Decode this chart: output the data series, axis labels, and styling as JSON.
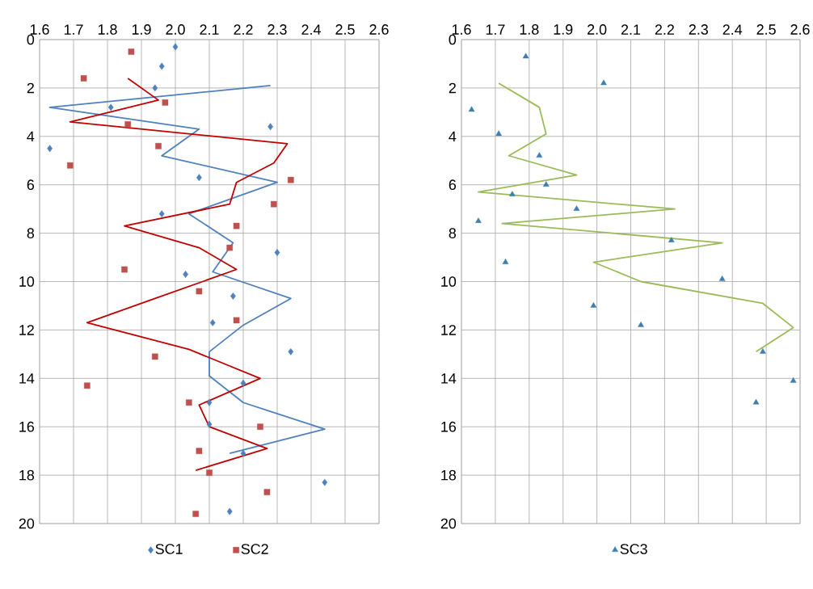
{
  "chart_data": [
    {
      "type": "scatter",
      "xlim": [
        1.6,
        2.6
      ],
      "ylim": [
        20,
        0
      ],
      "xticks": [
        1.6,
        1.7,
        1.8,
        1.9,
        {
          "value": 2,
          "label": "2.0"
        },
        2.1,
        2.2,
        2.3,
        2.4,
        2.5,
        2.6
      ],
      "yticks": [
        0,
        2,
        4,
        6,
        8,
        10,
        12,
        14,
        16,
        18,
        20
      ],
      "grid": true,
      "legend": "bottom",
      "series": [
        {
          "name": "SC1",
          "marker": "diamond",
          "color": "#4f81bd",
          "x": [
            2.0,
            1.96,
            1.94,
            1.81,
            2.28,
            1.63,
            2.07,
            1.96,
            2.3,
            2.03,
            2.17,
            2.11,
            2.34,
            2.2,
            2.1,
            2.1,
            2.2,
            2.44,
            2.16
          ],
          "values": [
            0.3,
            1.1,
            2.0,
            2.8,
            3.6,
            4.5,
            5.7,
            7.2,
            8.8,
            9.7,
            10.6,
            11.7,
            12.9,
            14.2,
            15.0,
            15.9,
            17.1,
            18.3,
            19.5
          ]
        },
        {
          "name": "SC2",
          "marker": "square",
          "color": "#c0504d",
          "x": [
            1.87,
            1.73,
            1.97,
            1.86,
            1.95,
            1.69,
            2.34,
            2.29,
            2.18,
            2.16,
            1.85,
            2.07,
            2.18,
            1.94,
            1.74,
            2.04,
            2.25,
            2.07,
            2.1,
            2.27,
            2.06
          ],
          "values": [
            0.5,
            1.6,
            2.6,
            3.5,
            4.4,
            5.2,
            5.8,
            6.8,
            7.7,
            8.6,
            9.5,
            10.4,
            11.6,
            13.1,
            14.3,
            15.0,
            16.0,
            17.0,
            17.9,
            18.7,
            19.6
          ]
        },
        {
          "type": "line",
          "marker": "none",
          "color": "#4f81bd",
          "x": [
            2.28,
            1.63,
            2.07,
            1.96,
            2.3,
            2.04,
            2.17,
            2.11,
            2.34,
            2.2,
            2.1,
            2.1,
            2.2,
            2.44,
            2.16
          ],
          "values": [
            1.9,
            2.8,
            3.7,
            4.8,
            5.9,
            7.2,
            8.4,
            9.6,
            10.7,
            11.8,
            12.9,
            13.9,
            15.0,
            16.1,
            17.1
          ]
        },
        {
          "type": "line",
          "marker": "none",
          "color": "#c00000",
          "x": [
            1.86,
            1.95,
            1.69,
            2.33,
            2.29,
            2.18,
            2.16,
            1.85,
            2.07,
            2.18,
            1.94,
            1.74,
            2.04,
            2.25,
            2.07,
            2.1,
            2.27,
            2.06
          ],
          "values": [
            1.6,
            2.5,
            3.4,
            4.3,
            5.1,
            5.9,
            6.8,
            7.7,
            8.6,
            9.5,
            10.7,
            11.7,
            12.8,
            14.0,
            15.1,
            16.0,
            16.9,
            17.8
          ]
        }
      ]
    },
    {
      "type": "scatter",
      "xlim": [
        1.6,
        2.6
      ],
      "ylim": [
        20,
        0
      ],
      "xticks": [
        1.6,
        1.7,
        1.8,
        1.9,
        {
          "value": 2,
          "label": "2.0"
        },
        2.1,
        2.2,
        2.3,
        2.4,
        2.5,
        2.6
      ],
      "yticks": [
        0,
        2,
        4,
        6,
        8,
        10,
        12,
        14,
        16,
        18,
        20
      ],
      "grid": true,
      "legend": "bottom",
      "series": [
        {
          "name": "SC3",
          "marker": "triangle",
          "color": "#3f7fae",
          "x": [
            1.79,
            2.02,
            1.63,
            1.71,
            1.83,
            1.85,
            1.75,
            1.94,
            1.65,
            2.22,
            1.73,
            2.37,
            1.99,
            2.13,
            2.49,
            2.58,
            2.47
          ],
          "values": [
            0.7,
            1.8,
            2.9,
            3.9,
            4.8,
            6.0,
            6.4,
            7.0,
            7.5,
            8.3,
            9.2,
            9.9,
            11.0,
            11.8,
            12.9,
            14.1,
            15.0
          ]
        },
        {
          "type": "line",
          "marker": "none",
          "color": "#9bbb59",
          "x": [
            1.71,
            1.83,
            1.85,
            1.74,
            1.94,
            1.65,
            2.23,
            1.72,
            2.37,
            1.99,
            2.13,
            2.49,
            2.58,
            2.47
          ],
          "values": [
            1.8,
            2.8,
            3.9,
            4.8,
            5.6,
            6.3,
            7.0,
            7.6,
            8.4,
            9.2,
            10.0,
            10.9,
            11.9,
            12.9
          ]
        }
      ]
    }
  ]
}
